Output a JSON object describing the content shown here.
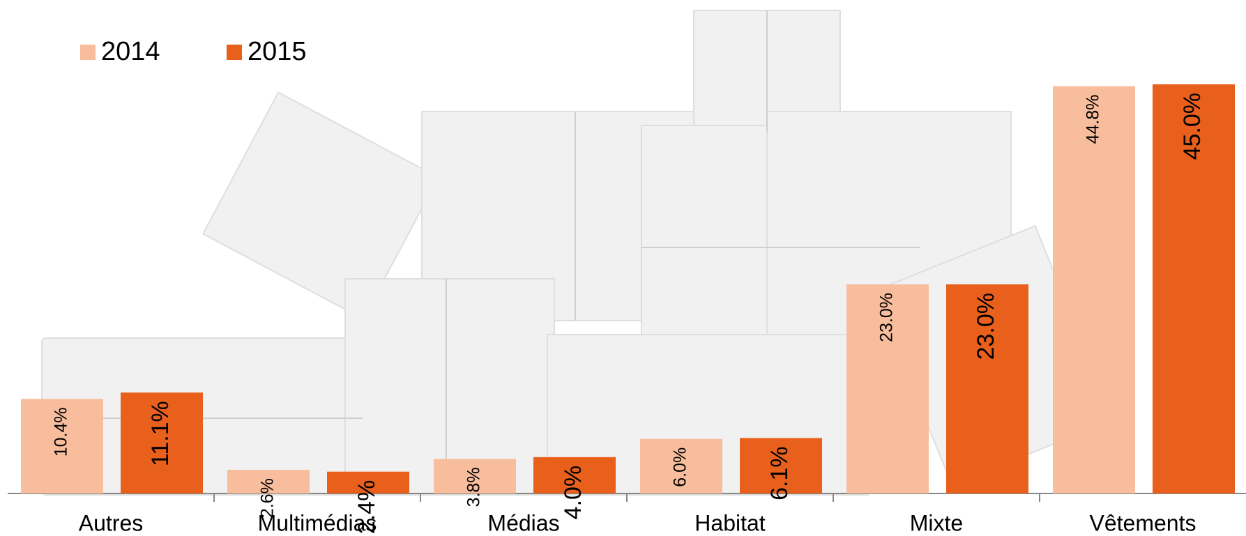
{
  "chart_data": {
    "type": "bar",
    "categories": [
      "Autres",
      "Multimédias",
      "Médias",
      "Habitat",
      "Mixte",
      "Vêtements"
    ],
    "series": [
      {
        "name": "2014",
        "color": "#f8bd9c",
        "values": [
          10.4,
          2.6,
          3.8,
          6.0,
          23.0,
          44.8
        ],
        "value_labels": [
          "10.4%",
          "2.6%",
          "3.8%",
          "6.0%",
          "23.0%",
          "44.8%"
        ]
      },
      {
        "name": "2015",
        "color": "#e8601c",
        "values": [
          11.1,
          2.4,
          4.0,
          6.1,
          23.0,
          45.0
        ],
        "value_labels": [
          "11.1%",
          "2.4%",
          "4.0%",
          "6.1%",
          "23.0%",
          "45.0%"
        ]
      }
    ],
    "ylim": [
      0,
      45
    ],
    "legend": "top-left"
  }
}
